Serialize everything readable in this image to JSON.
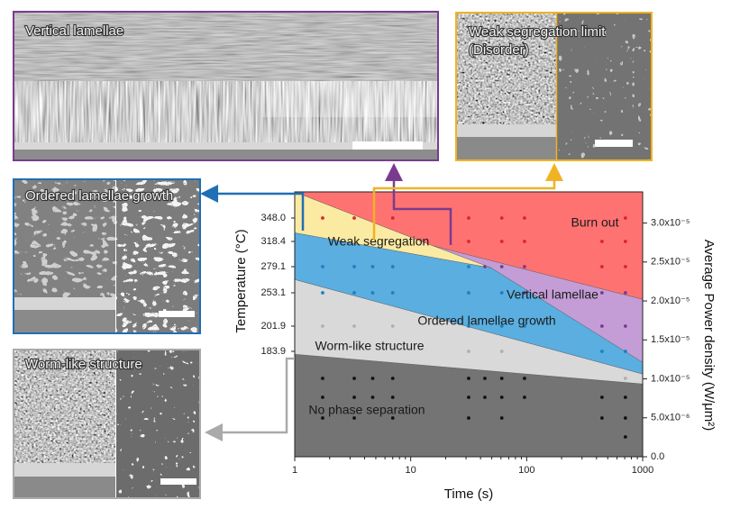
{
  "chart_data": {
    "type": "region",
    "x_label": "Time (s)",
    "y_label": "Temperature (°C)",
    "y2_label": "Average Power density (W/μm²)",
    "xscale": "log",
    "xlim": [
      1,
      1000
    ],
    "xticks": [
      1,
      10,
      100,
      1000
    ],
    "ylim": [
      0,
      3.4e-05
    ],
    "yticks": [
      {
        "value": 3e-05,
        "label": "3.0x10⁻⁵"
      },
      {
        "value": 2.5e-05,
        "label": "2.5x10⁻⁵"
      },
      {
        "value": 2e-05,
        "label": "2.0x10⁻⁵"
      },
      {
        "value": 1.5e-05,
        "label": "1.5x10⁻⁵"
      },
      {
        "value": 1e-05,
        "label": "1.0x10⁻⁵"
      },
      {
        "value": 5e-06,
        "label": "5.0x10⁻⁶"
      },
      {
        "value": 0,
        "label": "0.0"
      }
    ],
    "temperature_ticks": [
      "348.0",
      "318.4",
      "279.1",
      "253.1",
      "201.9",
      "183.9",
      null,
      null,
      null,
      null
    ],
    "regions": [
      {
        "label": "No phase separation",
        "color": "#747474",
        "x": [
          1,
          1000,
          1000,
          1
        ],
        "y": [
          0,
          0,
          9.35e-06,
          1.316e-05
        ]
      },
      {
        "label": "Worm-like structure",
        "color": "#d9d9d9",
        "x": [
          1,
          1000,
          1000,
          1
        ],
        "y": [
          1.316e-05,
          9.35e-06,
          1.062e-05,
          2.275e-05
        ]
      },
      {
        "label": "Ordered lamellae growth",
        "color": "#5aaee0",
        "x": [
          1,
          49.4,
          1000,
          1000,
          1
        ],
        "y": [
          2.875e-05,
          2.425e-05,
          1.212e-05,
          1.062e-05,
          2.275e-05
        ]
      },
      {
        "label": "Vertical lamellae",
        "color": "#c49dd6",
        "x": [
          15.4,
          1000,
          1000,
          49.4
        ],
        "y": [
          2.71e-05,
          2.021e-05,
          1.212e-05,
          2.425e-05
        ]
      },
      {
        "label": "Weak segregation",
        "color": "#fbeaa2",
        "x": [
          1,
          15.4,
          49.4,
          1
        ],
        "y": [
          3.4e-05,
          2.71e-05,
          2.425e-05,
          2.875e-05
        ]
      },
      {
        "label": "Burn out",
        "color": "#ff7272",
        "x": [
          1,
          1000,
          1000,
          15.4
        ],
        "y": [
          3.4e-05,
          3.4e-05,
          2.021e-05,
          2.71e-05
        ]
      }
    ],
    "points": [
      {
        "x": 1.74,
        "row": 0,
        "color": "#d9262b"
      },
      {
        "x": 1.74,
        "row": 2,
        "color": "#1f7fbf"
      },
      {
        "x": 1.74,
        "row": 3,
        "color": "#1f7fbf"
      },
      {
        "x": 1.74,
        "row": 4,
        "color": "#b0b0b0"
      },
      {
        "x": 1.74,
        "row": 6,
        "color": "#111111"
      },
      {
        "x": 1.74,
        "row": 7,
        "color": "#111111"
      },
      {
        "x": 1.74,
        "row": 8,
        "color": "#111111"
      },
      {
        "x": 3.26,
        "row": 0,
        "color": "#d9262b"
      },
      {
        "x": 3.26,
        "row": 2,
        "color": "#1f7fbf"
      },
      {
        "x": 3.26,
        "row": 3,
        "color": "#1f7fbf"
      },
      {
        "x": 3.26,
        "row": 4,
        "color": "#b0b0b0"
      },
      {
        "x": 3.26,
        "row": 6,
        "color": "#111111"
      },
      {
        "x": 3.26,
        "row": 7,
        "color": "#111111"
      },
      {
        "x": 3.26,
        "row": 8,
        "color": "#111111"
      },
      {
        "x": 4.7,
        "row": 2,
        "color": "#1f7fbf"
      },
      {
        "x": 4.7,
        "row": 3,
        "color": "#1f7fbf"
      },
      {
        "x": 4.7,
        "row": 6,
        "color": "#111111"
      },
      {
        "x": 4.7,
        "row": 7,
        "color": "#111111"
      },
      {
        "x": 7.0,
        "row": 0,
        "color": "#d9262b"
      },
      {
        "x": 7.0,
        "row": 2,
        "color": "#1f7fbf"
      },
      {
        "x": 7.0,
        "row": 3,
        "color": "#1f7fbf"
      },
      {
        "x": 7.0,
        "row": 4,
        "color": "#b0b0b0"
      },
      {
        "x": 7.0,
        "row": 6,
        "color": "#111111"
      },
      {
        "x": 7.0,
        "row": 7,
        "color": "#111111"
      },
      {
        "x": 7.0,
        "row": 8,
        "color": "#111111"
      },
      {
        "x": 31.6,
        "row": 0,
        "color": "#d9262b"
      },
      {
        "x": 31.6,
        "row": 1,
        "color": "#d9262b"
      },
      {
        "x": 31.6,
        "row": 2,
        "color": "#1f7fbf"
      },
      {
        "x": 31.6,
        "row": 3,
        "color": "#1f7fbf"
      },
      {
        "x": 31.6,
        "row": 4,
        "color": "#1f7fbf"
      },
      {
        "x": 31.6,
        "row": 5,
        "color": "#b0b0b0"
      },
      {
        "x": 31.6,
        "row": 6,
        "color": "#111111"
      },
      {
        "x": 31.6,
        "row": 7,
        "color": "#111111"
      },
      {
        "x": 31.6,
        "row": 8,
        "color": "#111111"
      },
      {
        "x": 43.6,
        "row": 2,
        "color": "#7a3b8f"
      },
      {
        "x": 43.6,
        "row": 6,
        "color": "#111111"
      },
      {
        "x": 43.6,
        "row": 7,
        "color": "#111111"
      },
      {
        "x": 61,
        "row": 0,
        "color": "#d9262b"
      },
      {
        "x": 61,
        "row": 1,
        "color": "#d9262b"
      },
      {
        "x": 61,
        "row": 2,
        "color": "#7a3b8f"
      },
      {
        "x": 61,
        "row": 3,
        "color": "#1f7fbf"
      },
      {
        "x": 61,
        "row": 4,
        "color": "#1f7fbf"
      },
      {
        "x": 61,
        "row": 5,
        "color": "#b0b0b0"
      },
      {
        "x": 61,
        "row": 6,
        "color": "#111111"
      },
      {
        "x": 61,
        "row": 7,
        "color": "#111111"
      },
      {
        "x": 61,
        "row": 8,
        "color": "#111111"
      },
      {
        "x": 95.8,
        "row": 0,
        "color": "#d9262b"
      },
      {
        "x": 95.8,
        "row": 1,
        "color": "#d9262b"
      },
      {
        "x": 95.8,
        "row": 2,
        "color": "#7a3b8f"
      },
      {
        "x": 95.8,
        "row": 3,
        "color": "#7a3b8f"
      },
      {
        "x": 95.8,
        "row": 4,
        "color": "#1f7fbf"
      },
      {
        "x": 95.8,
        "row": 6,
        "color": "#111111"
      },
      {
        "x": 95.8,
        "row": 7,
        "color": "#111111"
      },
      {
        "x": 446,
        "row": 1,
        "color": "#d9262b"
      },
      {
        "x": 446,
        "row": 2,
        "color": "#d9262b"
      },
      {
        "x": 446,
        "row": 3,
        "color": "#7a3b8f"
      },
      {
        "x": 446,
        "row": 4,
        "color": "#7a3b8f"
      },
      {
        "x": 446,
        "row": 5,
        "color": "#1f7fbf"
      },
      {
        "x": 446,
        "row": 7,
        "color": "#111111"
      },
      {
        "x": 446,
        "row": 8,
        "color": "#111111"
      },
      {
        "x": 710,
        "row": 0,
        "color": "#d9262b"
      },
      {
        "x": 710,
        "row": 1,
        "color": "#d9262b"
      },
      {
        "x": 710,
        "row": 2,
        "color": "#d9262b"
      },
      {
        "x": 710,
        "row": 3,
        "color": "#7a3b8f"
      },
      {
        "x": 710,
        "row": 4,
        "color": "#7a3b8f"
      },
      {
        "x": 710,
        "row": 5,
        "color": "#1f7fbf"
      },
      {
        "x": 710,
        "row": 6,
        "color": "#b0b0b0"
      },
      {
        "x": 710,
        "row": 7,
        "color": "#111111"
      },
      {
        "x": 710,
        "row": 8,
        "color": "#111111"
      },
      {
        "x": 710,
        "row": 9,
        "color": "#111111"
      }
    ]
  },
  "panels": [
    {
      "title": [
        "Vertical lamellae"
      ]
    },
    {
      "title": [
        "Weak segregation limit",
        "(Disorder)"
      ]
    },
    {
      "title": [
        "Ordered lamellae growth"
      ]
    },
    {
      "title": [
        "Worm-like structure"
      ]
    }
  ]
}
